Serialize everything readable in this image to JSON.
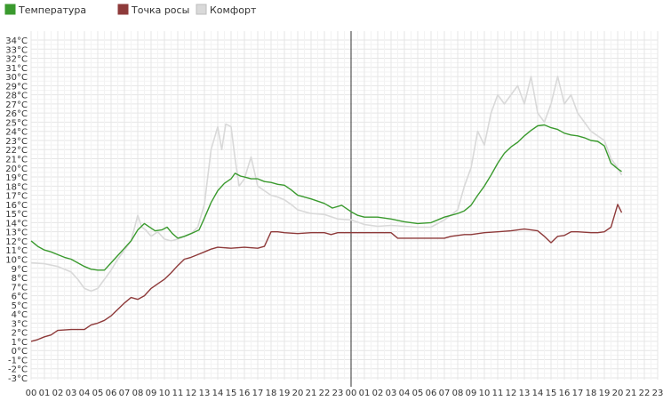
{
  "chart_data": {
    "type": "line",
    "title": "",
    "xlabel": "",
    "ylabel": "",
    "legend_position": "top-left",
    "grid": true,
    "ylim": [
      -3,
      34
    ],
    "y_tick_step": 1,
    "y_unit": "°C",
    "xlim": [
      0,
      47
    ],
    "x_ticks": [
      "00",
      "01",
      "02",
      "03",
      "04",
      "05",
      "06",
      "07",
      "08",
      "09",
      "10",
      "11",
      "12",
      "13",
      "14",
      "15",
      "16",
      "17",
      "18",
      "19",
      "20",
      "21",
      "22",
      "23",
      "00",
      "01",
      "02",
      "03",
      "04",
      "05",
      "06",
      "07",
      "08",
      "09",
      "10",
      "11",
      "12",
      "13",
      "14",
      "15",
      "16",
      "17",
      "18",
      "19",
      "20",
      "21",
      "22",
      "23"
    ],
    "day_divider_x": 24,
    "series": [
      {
        "name": "Температура",
        "color": "#3a9a2e",
        "points": [
          [
            0,
            12
          ],
          [
            0.5,
            11.4
          ],
          [
            1,
            11
          ],
          [
            1.5,
            10.8
          ],
          [
            2,
            10.5
          ],
          [
            2.5,
            10.2
          ],
          [
            3,
            10
          ],
          [
            3.5,
            9.6
          ],
          [
            4,
            9.2
          ],
          [
            4.5,
            8.9
          ],
          [
            5,
            8.8
          ],
          [
            5.5,
            8.8
          ],
          [
            6,
            9.6
          ],
          [
            6.5,
            10.4
          ],
          [
            7,
            11.2
          ],
          [
            7.5,
            12
          ],
          [
            8,
            13.2
          ],
          [
            8.5,
            13.9
          ],
          [
            9,
            13.4
          ],
          [
            9.3,
            13.1
          ],
          [
            9.8,
            13.2
          ],
          [
            10.2,
            13.5
          ],
          [
            10.6,
            12.8
          ],
          [
            11,
            12.3
          ],
          [
            11.5,
            12.5
          ],
          [
            12,
            12.8
          ],
          [
            12.6,
            13.2
          ],
          [
            13,
            14.5
          ],
          [
            13.5,
            16.2
          ],
          [
            14,
            17.5
          ],
          [
            14.5,
            18.3
          ],
          [
            15,
            18.8
          ],
          [
            15.3,
            19.4
          ],
          [
            15.7,
            19.1
          ],
          [
            16,
            19
          ],
          [
            16.5,
            18.8
          ],
          [
            17,
            18.8
          ],
          [
            17.5,
            18.5
          ],
          [
            18,
            18.4
          ],
          [
            18.5,
            18.2
          ],
          [
            19,
            18.1
          ],
          [
            19.5,
            17.6
          ],
          [
            20,
            17
          ],
          [
            21,
            16.6
          ],
          [
            22,
            16.1
          ],
          [
            22.6,
            15.6
          ],
          [
            23.3,
            15.9
          ],
          [
            24,
            15.2
          ],
          [
            24.5,
            14.8
          ],
          [
            25,
            14.6
          ],
          [
            26,
            14.6
          ],
          [
            27,
            14.4
          ],
          [
            28,
            14.1
          ],
          [
            29,
            13.9
          ],
          [
            30,
            14
          ],
          [
            30.5,
            14.3
          ],
          [
            31,
            14.6
          ],
          [
            31.5,
            14.8
          ],
          [
            32,
            15
          ],
          [
            32.5,
            15.3
          ],
          [
            33,
            15.9
          ],
          [
            33.5,
            17
          ],
          [
            34,
            18
          ],
          [
            34.5,
            19.2
          ],
          [
            35,
            20.5
          ],
          [
            35.5,
            21.6
          ],
          [
            36,
            22.3
          ],
          [
            36.5,
            22.8
          ],
          [
            37,
            23.5
          ],
          [
            37.5,
            24.1
          ],
          [
            38,
            24.6
          ],
          [
            38.5,
            24.7
          ],
          [
            39,
            24.4
          ],
          [
            39.5,
            24.2
          ],
          [
            40,
            23.8
          ],
          [
            40.5,
            23.6
          ],
          [
            41,
            23.5
          ],
          [
            41.5,
            23.3
          ],
          [
            42,
            23
          ],
          [
            42.5,
            22.9
          ],
          [
            43,
            22.4
          ],
          [
            43.5,
            20.5
          ],
          [
            44,
            19.9
          ],
          [
            44.3,
            19.6
          ]
        ]
      },
      {
        "name": "Точка росы",
        "color": "#8e3a3a",
        "points": [
          [
            0,
            1
          ],
          [
            0.5,
            1.2
          ],
          [
            1,
            1.5
          ],
          [
            1.5,
            1.7
          ],
          [
            2,
            2.2
          ],
          [
            3,
            2.3
          ],
          [
            4,
            2.3
          ],
          [
            4.5,
            2.8
          ],
          [
            5,
            3
          ],
          [
            5.5,
            3.3
          ],
          [
            6,
            3.8
          ],
          [
            6.5,
            4.5
          ],
          [
            7,
            5.2
          ],
          [
            7.5,
            5.8
          ],
          [
            8,
            5.6
          ],
          [
            8.5,
            6
          ],
          [
            9,
            6.8
          ],
          [
            9.5,
            7.3
          ],
          [
            10,
            7.8
          ],
          [
            10.5,
            8.5
          ],
          [
            11,
            9.3
          ],
          [
            11.5,
            10
          ],
          [
            12,
            10.2
          ],
          [
            12.5,
            10.5
          ],
          [
            13,
            10.8
          ],
          [
            13.5,
            11.1
          ],
          [
            14,
            11.3
          ],
          [
            15,
            11.2
          ],
          [
            16,
            11.3
          ],
          [
            17,
            11.2
          ],
          [
            17.5,
            11.4
          ],
          [
            18,
            13
          ],
          [
            18.5,
            13
          ],
          [
            19,
            12.9
          ],
          [
            20,
            12.8
          ],
          [
            21,
            12.9
          ],
          [
            22,
            12.9
          ],
          [
            22.5,
            12.7
          ],
          [
            23,
            12.9
          ],
          [
            24,
            12.9
          ],
          [
            25,
            12.9
          ],
          [
            26,
            12.9
          ],
          [
            27,
            12.9
          ],
          [
            27.5,
            12.3
          ],
          [
            28,
            12.3
          ],
          [
            29,
            12.3
          ],
          [
            30,
            12.3
          ],
          [
            31,
            12.3
          ],
          [
            31.5,
            12.5
          ],
          [
            32,
            12.6
          ],
          [
            32.5,
            12.7
          ],
          [
            33,
            12.7
          ],
          [
            34,
            12.9
          ],
          [
            35,
            13
          ],
          [
            36,
            13.1
          ],
          [
            36.5,
            13.2
          ],
          [
            37,
            13.3
          ],
          [
            37.5,
            13.2
          ],
          [
            38,
            13.1
          ],
          [
            38.5,
            12.5
          ],
          [
            39,
            11.8
          ],
          [
            39.5,
            12.5
          ],
          [
            40,
            12.6
          ],
          [
            40.5,
            13
          ],
          [
            41,
            13
          ],
          [
            42,
            12.9
          ],
          [
            42.5,
            12.9
          ],
          [
            43,
            13
          ],
          [
            43.5,
            13.5
          ],
          [
            44,
            16
          ],
          [
            44.3,
            15.1
          ]
        ]
      },
      {
        "name": "Комфорт",
        "color": "#d9d9d9",
        "points": [
          [
            0,
            9.6
          ],
          [
            1,
            9.5
          ],
          [
            2,
            9.2
          ],
          [
            3,
            8.6
          ],
          [
            3.5,
            7.8
          ],
          [
            4,
            6.8
          ],
          [
            4.5,
            6.5
          ],
          [
            5,
            6.8
          ],
          [
            5.5,
            7.8
          ],
          [
            6,
            8.8
          ],
          [
            6.5,
            10
          ],
          [
            7,
            11
          ],
          [
            7.5,
            12
          ],
          [
            8,
            14.8
          ],
          [
            8.3,
            13.5
          ],
          [
            8.6,
            13.2
          ],
          [
            9,
            12.5
          ],
          [
            9.5,
            13
          ],
          [
            10,
            12.2
          ],
          [
            10.5,
            12
          ],
          [
            11,
            12.2
          ],
          [
            11.5,
            12.5
          ],
          [
            12,
            12.8
          ],
          [
            12.5,
            13.5
          ],
          [
            13,
            16
          ],
          [
            13.5,
            22
          ],
          [
            14,
            24.5
          ],
          [
            14.3,
            22
          ],
          [
            14.6,
            24.8
          ],
          [
            15,
            24.5
          ],
          [
            15.3,
            21
          ],
          [
            15.6,
            18
          ],
          [
            16,
            18.8
          ],
          [
            16.5,
            21.2
          ],
          [
            17,
            18
          ],
          [
            17.5,
            17.5
          ],
          [
            18,
            17
          ],
          [
            18.5,
            16.8
          ],
          [
            19,
            16.5
          ],
          [
            19.5,
            16
          ],
          [
            20,
            15.4
          ],
          [
            21,
            15
          ],
          [
            22,
            14.9
          ],
          [
            23,
            14.4
          ],
          [
            24,
            14.3
          ],
          [
            25,
            13.8
          ],
          [
            26,
            13.6
          ],
          [
            27,
            13.7
          ],
          [
            28,
            13.6
          ],
          [
            29,
            13.5
          ],
          [
            30,
            13.5
          ],
          [
            31,
            14.3
          ],
          [
            32,
            15.4
          ],
          [
            32.5,
            18
          ],
          [
            33,
            20
          ],
          [
            33.5,
            24
          ],
          [
            34,
            22.5
          ],
          [
            34.5,
            26
          ],
          [
            35,
            28
          ],
          [
            35.5,
            27
          ],
          [
            36,
            28
          ],
          [
            36.5,
            29
          ],
          [
            37,
            27
          ],
          [
            37.5,
            30
          ],
          [
            38,
            26
          ],
          [
            38.5,
            25
          ],
          [
            39,
            27
          ],
          [
            39.5,
            30
          ],
          [
            40,
            27
          ],
          [
            40.5,
            28
          ],
          [
            41,
            26
          ],
          [
            41.5,
            25
          ],
          [
            42,
            24
          ],
          [
            42.5,
            23.5
          ],
          [
            43,
            23
          ],
          [
            43.5,
            21
          ],
          [
            44,
            20
          ],
          [
            44.3,
            19.2
          ]
        ]
      }
    ]
  }
}
